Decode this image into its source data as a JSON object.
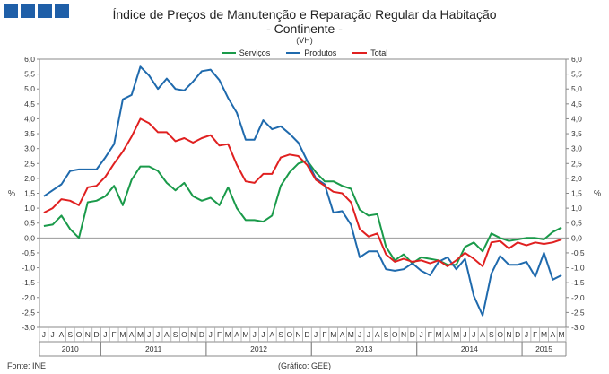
{
  "chart_data": {
    "type": "line",
    "title": "Índice de Preços de Manutenção e Reparação Regular da Habitação",
    "subtitle": "- Continente -",
    "unit_note": "(VH)",
    "ylabel_left": "%",
    "ylabel_right": "%",
    "ylim": [
      -3.0,
      6.0
    ],
    "ytick_step": 0.5,
    "ytick_labels": [
      "6,0",
      "5,5",
      "5,0",
      "4,5",
      "4,0",
      "3,5",
      "3,0",
      "2,5",
      "2,0",
      "1,5",
      "1,0",
      "0,5",
      "0,0",
      "-0,5",
      "-1,0",
      "-1,5",
      "-2,0",
      "-2,5",
      "-3,0"
    ],
    "months": [
      "J",
      "J",
      "A",
      "S",
      "O",
      "N",
      "D",
      "J",
      "F",
      "M",
      "A",
      "M",
      "J",
      "J",
      "A",
      "S",
      "O",
      "N",
      "D",
      "J",
      "F",
      "M",
      "A",
      "M",
      "J",
      "J",
      "A",
      "S",
      "O",
      "N",
      "D",
      "J",
      "F",
      "M",
      "A",
      "M",
      "J",
      "J",
      "A",
      "S",
      "O",
      "N",
      "D",
      "J",
      "F",
      "M",
      "A",
      "M",
      "J",
      "J",
      "A",
      "S",
      "O",
      "N",
      "D",
      "J",
      "F",
      "M",
      "A",
      "M"
    ],
    "years": [
      {
        "label": "2010",
        "start": 0,
        "end": 6
      },
      {
        "label": "2011",
        "start": 7,
        "end": 18
      },
      {
        "label": "2012",
        "start": 19,
        "end": 30
      },
      {
        "label": "2013",
        "start": 31,
        "end": 42
      },
      {
        "label": "2014",
        "start": 43,
        "end": 54
      },
      {
        "label": "2015",
        "start": 55,
        "end": 59
      }
    ],
    "series": [
      {
        "name": "Serviços",
        "color": "#1a9a4a",
        "values": [
          0.4,
          0.45,
          0.75,
          0.3,
          0.0,
          1.2,
          1.25,
          1.4,
          1.75,
          1.1,
          1.95,
          2.4,
          2.4,
          2.25,
          1.85,
          1.6,
          1.85,
          1.4,
          1.25,
          1.35,
          1.1,
          1.7,
          1.0,
          0.6,
          0.6,
          0.55,
          0.75,
          1.75,
          2.2,
          2.5,
          2.6,
          2.2,
          1.9,
          1.9,
          1.75,
          1.65,
          0.95,
          0.75,
          0.8,
          -0.3,
          -0.75,
          -0.55,
          -0.85,
          -0.65,
          -0.7,
          -0.75,
          -0.9,
          -0.9,
          -0.3,
          -0.15,
          -0.45,
          0.15,
          0.0,
          -0.1,
          -0.05,
          0.0,
          0.0,
          -0.05,
          0.2,
          0.35
        ]
      },
      {
        "name": "Produtos",
        "color": "#1f6aad",
        "values": [
          1.4,
          1.6,
          1.8,
          2.25,
          2.3,
          2.3,
          2.3,
          2.7,
          3.15,
          4.65,
          4.8,
          5.75,
          5.45,
          5.0,
          5.35,
          5.0,
          4.95,
          5.25,
          5.6,
          5.65,
          5.3,
          4.7,
          4.2,
          3.3,
          3.3,
          3.95,
          3.65,
          3.75,
          3.5,
          3.2,
          2.6,
          2.0,
          1.8,
          0.85,
          0.9,
          0.45,
          -0.65,
          -0.45,
          -0.45,
          -1.05,
          -1.1,
          -1.05,
          -0.85,
          -1.1,
          -1.25,
          -0.8,
          -0.65,
          -1.05,
          -0.7,
          -1.95,
          -2.6,
          -1.2,
          -0.6,
          -0.9,
          -0.9,
          -0.8,
          -1.3,
          -0.5,
          -1.4,
          -1.25
        ]
      },
      {
        "name": "Total",
        "color": "#e02020",
        "values": [
          0.85,
          1.0,
          1.3,
          1.25,
          1.1,
          1.7,
          1.75,
          2.05,
          2.5,
          2.9,
          3.4,
          4.0,
          3.85,
          3.55,
          3.55,
          3.25,
          3.35,
          3.2,
          3.35,
          3.45,
          3.1,
          3.15,
          2.45,
          1.9,
          1.85,
          2.15,
          2.15,
          2.7,
          2.8,
          2.75,
          2.45,
          1.95,
          1.75,
          1.55,
          1.5,
          1.2,
          0.3,
          0.05,
          0.15,
          -0.55,
          -0.8,
          -0.7,
          -0.8,
          -0.75,
          -0.85,
          -0.75,
          -0.95,
          -0.75,
          -0.5,
          -0.7,
          -0.95,
          -0.15,
          -0.1,
          -0.35,
          -0.15,
          -0.25,
          -0.15,
          -0.2,
          -0.15,
          -0.05
        ]
      }
    ]
  },
  "footer": {
    "source": "Fonte: INE",
    "credit": "(Gráfico: GEE)"
  }
}
